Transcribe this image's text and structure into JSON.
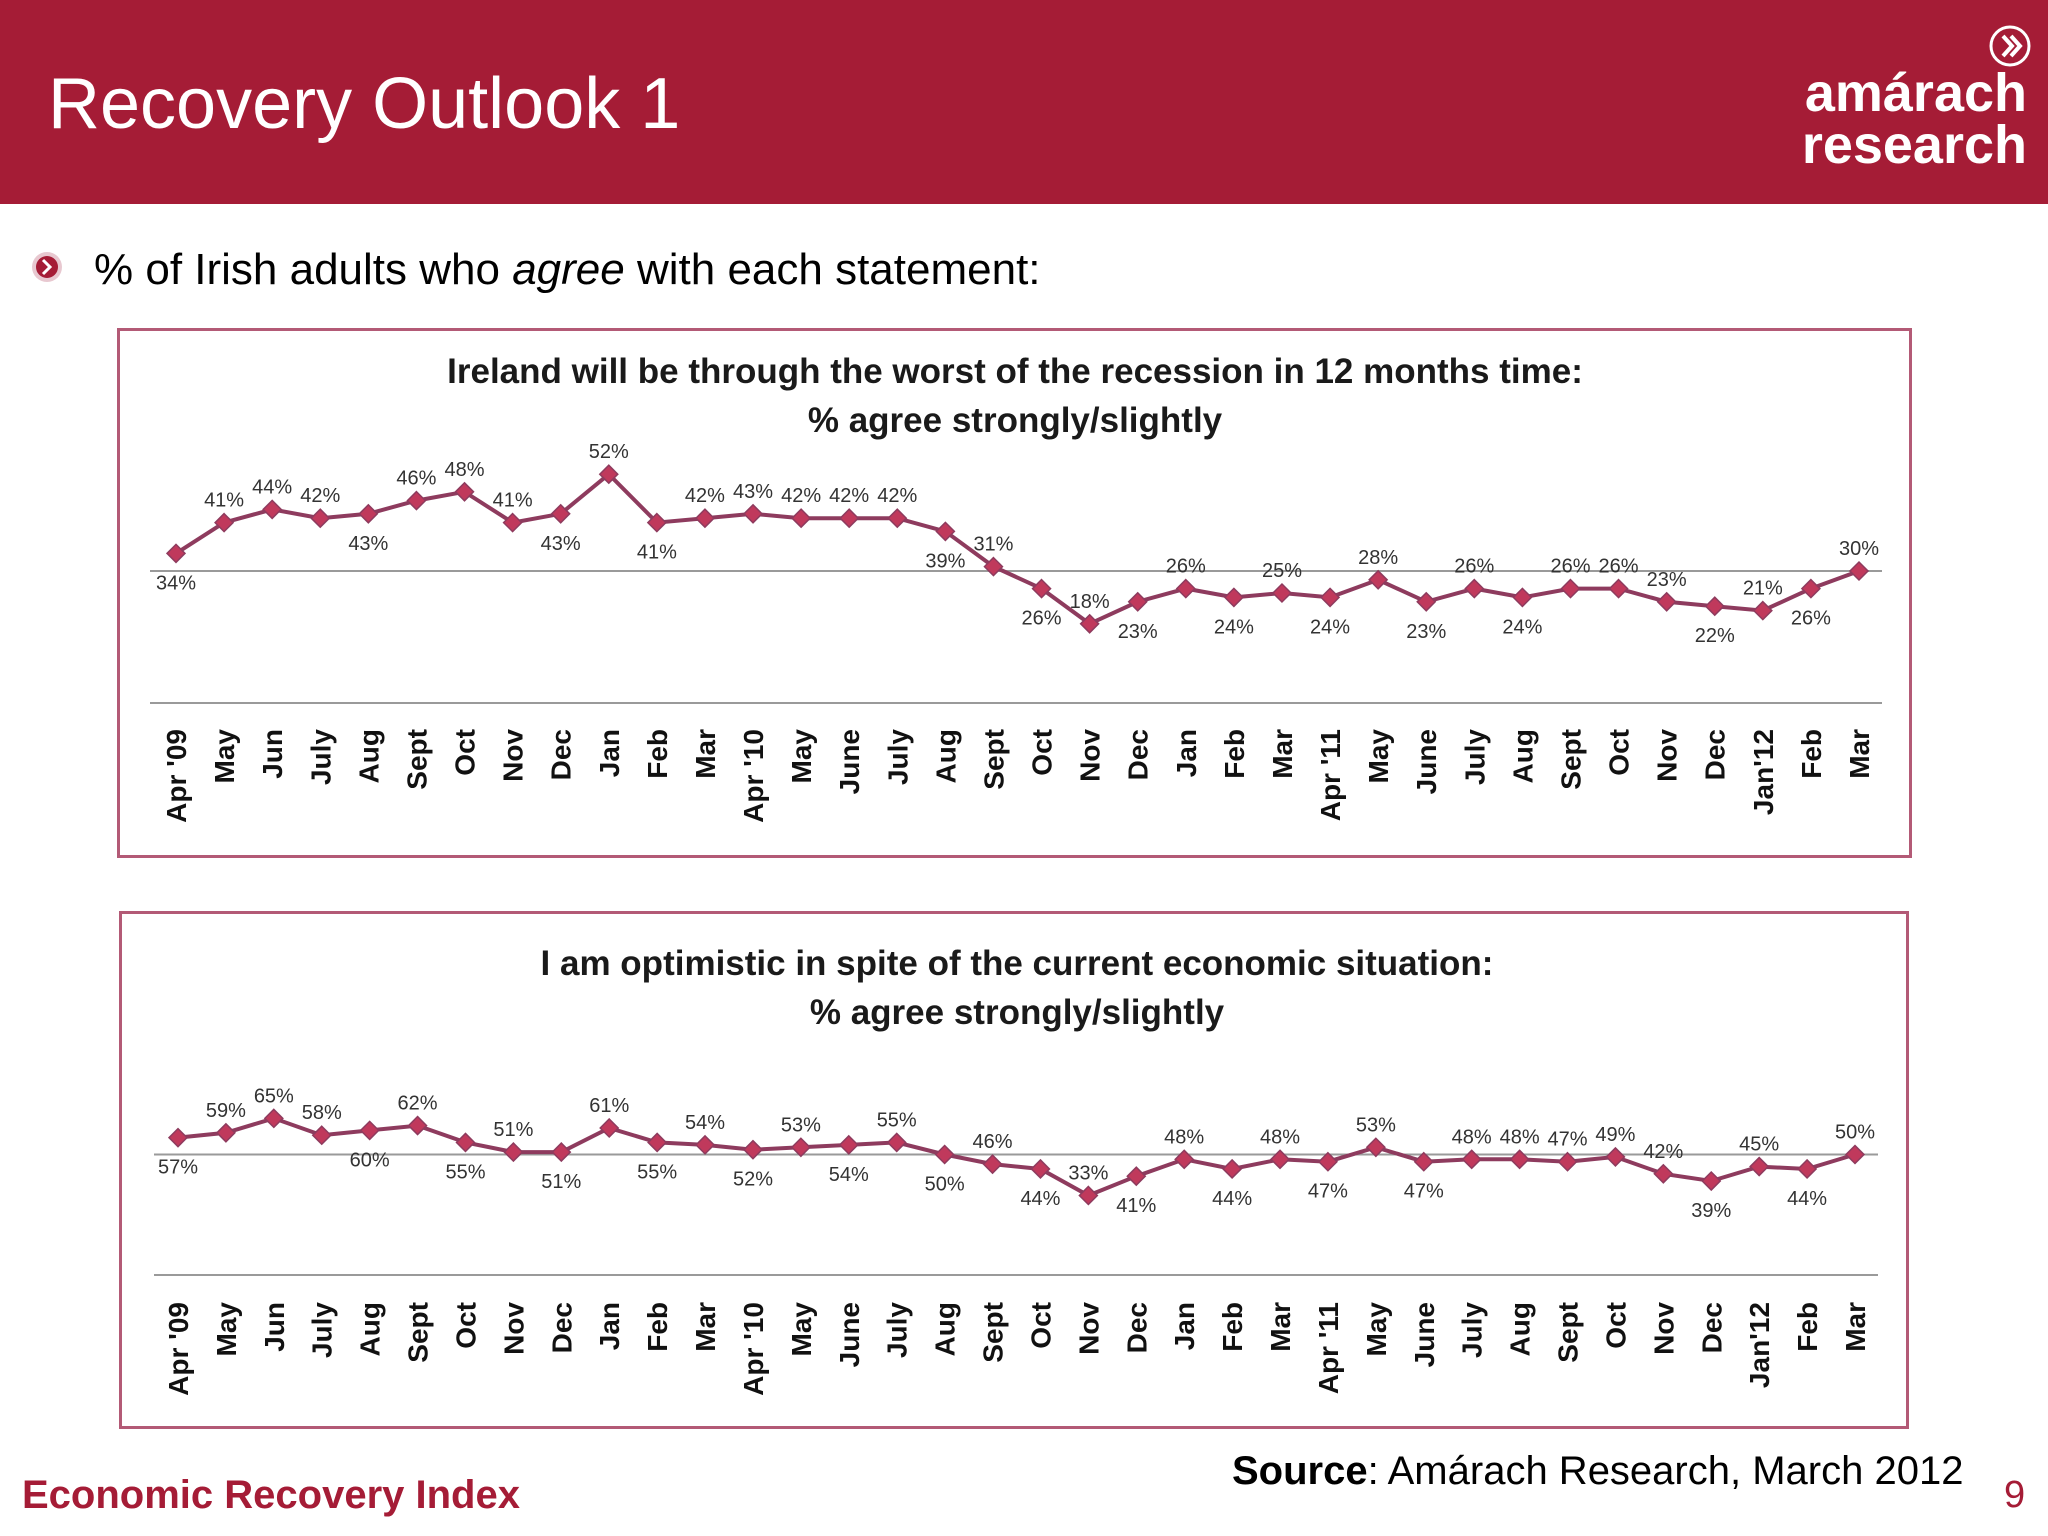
{
  "header": {
    "title": "Recovery Outlook 1",
    "logo_line1": "amárach",
    "logo_line2": "research",
    "logo_icon": "chevron-circle-icon"
  },
  "subtitle": {
    "prefix": "% of Irish adults who ",
    "emphasis": "agree",
    "suffix": " with each statement:",
    "bullet_icon": "chevron-bullet-icon"
  },
  "colors": {
    "brand": "#a51c36",
    "series_line": "#8e3b5e",
    "series_marker": "#c0395c",
    "box_border": "#b35a76",
    "gridline": "#9a9a9a"
  },
  "chart_data": [
    {
      "type": "line",
      "title": "Ireland will be through the worst of the recession in 12 months time:",
      "subtitle": "% agree strongly/slightly",
      "categories": [
        "Apr '09",
        "May",
        "Jun",
        "July",
        "Aug",
        "Sept",
        "Oct",
        "Nov",
        "Dec",
        "Jan",
        "Feb",
        "Mar",
        "Apr '10",
        "May",
        "June",
        "July",
        "Aug",
        "Sept",
        "Oct",
        "Nov",
        "Dec",
        "Jan",
        "Feb",
        "Mar",
        "Apr '11",
        "May",
        "June",
        "July",
        "Aug",
        "Sept",
        "Oct",
        "Nov",
        "Dec",
        "Jan'12",
        "Feb",
        "Mar"
      ],
      "series": [
        {
          "values": [
            34,
            41,
            44,
            42,
            43,
            46,
            48,
            41,
            43,
            52,
            41,
            42,
            43,
            42,
            42,
            42,
            39,
            31,
            26,
            18,
            23,
            26,
            24,
            25,
            24,
            28,
            23,
            26,
            24,
            26,
            26,
            23,
            22,
            21,
            26,
            30
          ]
        }
      ],
      "labels": [
        "34%",
        "41%",
        "44%",
        "42%",
        "43%",
        "46%",
        "48%",
        "41%",
        "43%",
        "52%",
        "41%",
        "42%",
        "43%",
        "42%",
        "42%",
        "42%",
        "39%",
        "31%",
        "26%",
        "18%",
        "23%",
        "26%",
        "24%",
        "25%",
        "24%",
        "28%",
        "23%",
        "26%",
        "24%",
        "26%",
        "26%",
        "23%",
        "22%",
        "21%",
        "26%",
        "30%"
      ],
      "ylim": [
        0,
        60
      ],
      "grid": true,
      "legend": "none"
    },
    {
      "type": "line",
      "title": "I am optimistic in spite of the current economic situation:",
      "subtitle": "% agree strongly/slightly",
      "categories": [
        "Apr '09",
        "May",
        "Jun",
        "July",
        "Aug",
        "Sept",
        "Oct",
        "Nov",
        "Dec",
        "Jan",
        "Feb",
        "Mar",
        "Apr '10",
        "May",
        "June",
        "July",
        "Aug",
        "Sept",
        "Oct",
        "Nov",
        "Dec",
        "Jan",
        "Feb",
        "Mar",
        "Apr '11",
        "May",
        "June",
        "July",
        "Aug",
        "Sept",
        "Oct",
        "Nov",
        "Dec",
        "Jan'12",
        "Feb",
        "Mar"
      ],
      "series": [
        {
          "values": [
            57,
            59,
            65,
            58,
            60,
            62,
            55,
            51,
            51,
            61,
            55,
            54,
            52,
            53,
            54,
            55,
            50,
            46,
            44,
            33,
            41,
            48,
            44,
            48,
            47,
            53,
            47,
            48,
            48,
            47,
            49,
            42,
            39,
            45,
            44,
            50
          ]
        }
      ],
      "labels": [
        "57%",
        "59%",
        "65%",
        "58%",
        "60%",
        "62%",
        "55%",
        "51%",
        "51%",
        "61%",
        "55%",
        "54%",
        "52%",
        "53%",
        "54%",
        "55%",
        "50%",
        "46%",
        "44%",
        "33%",
        "41%",
        "48%",
        "44%",
        "48%",
        "47%",
        "53%",
        "47%",
        "48%",
        "48%",
        "47%",
        "49%",
        "42%",
        "39%",
        "45%",
        "44%",
        "50%"
      ],
      "ylim": [
        0,
        100
      ],
      "grid": true,
      "legend": "none"
    }
  ],
  "footer": {
    "left": "Economic Recovery Index",
    "source_label": "Source",
    "source_text": ": Amárach Research, March 2012",
    "page": "9"
  }
}
